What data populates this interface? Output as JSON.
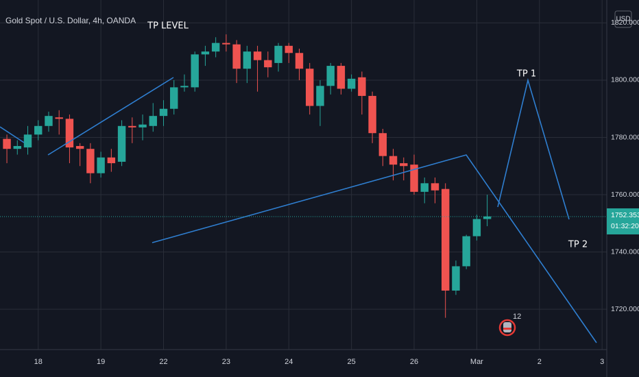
{
  "chart_data": {
    "type": "candlestick",
    "title": "Gold Spot / U.S. Dollar, 4h, OANDA",
    "currency": "USD",
    "annotations": [
      "TP LEVEL",
      "TP 1",
      "TP 2"
    ],
    "event_badge": "12",
    "last_price": 1752.353,
    "countdown": "01:32:20",
    "up_color": "#26a69a",
    "down_color": "#ef5350",
    "x": [
      0,
      1,
      2,
      3,
      4,
      5,
      6,
      7,
      8,
      9,
      10,
      11,
      12,
      13,
      14,
      15,
      16,
      17,
      18,
      19,
      20,
      21,
      22,
      23,
      24,
      25,
      26,
      27,
      28,
      29,
      30,
      31,
      32,
      33,
      34,
      35,
      36,
      37,
      38,
      39,
      40,
      41,
      42,
      43,
      44,
      45,
      46
    ],
    "open": [
      1779.5,
      1776,
      1776.5,
      1781,
      1784,
      1787,
      1786.5,
      1777,
      1776,
      1767.5,
      1773,
      1771.5,
      1784,
      1783.5,
      1784,
      1787.5,
      1790,
      1797.5,
      1797.5,
      1809,
      1810,
      1813,
      1812.5,
      1804,
      1810,
      1807,
      1806,
      1812,
      1809.5,
      1804,
      1791,
      1798,
      1805,
      1797,
      1801,
      1794.5,
      1781.5,
      1773.5,
      1771,
      1770.5,
      1761,
      1764,
      1762,
      1726.5,
      1735,
      1745.5,
      1751.5
    ],
    "high": [
      1781,
      1779,
      1784,
      1786,
      1789,
      1789.5,
      1788,
      1778,
      1778,
      1775,
      1776,
      1786,
      1787,
      1788,
      1792,
      1793,
      1800,
      1802,
      1810,
      1812,
      1815,
      1816,
      1814,
      1812,
      1812,
      1810,
      1813,
      1813,
      1811,
      1806,
      1800,
      1806,
      1806,
      1802,
      1803,
      1796,
      1783,
      1776,
      1773,
      1774,
      1766,
      1766,
      1764,
      1737,
      1746,
      1753,
      1760
    ],
    "low": [
      1771,
      1774,
      1774,
      1779,
      1782,
      1781,
      1771,
      1770,
      1764,
      1766,
      1768,
      1770,
      1778,
      1779,
      1782,
      1784,
      1788,
      1796,
      1796,
      1805,
      1808,
      1810,
      1799,
      1799,
      1796,
      1801,
      1803,
      1806,
      1800,
      1788,
      1784,
      1795,
      1795,
      1796,
      1788,
      1778,
      1770,
      1765,
      1765,
      1760,
      1757,
      1757,
      1717,
      1725,
      1734,
      1744,
      1749
    ],
    "close": [
      1776,
      1777,
      1781,
      1784,
      1787.5,
      1786.5,
      1776.5,
      1776,
      1767.5,
      1773,
      1771,
      1784,
      1783.5,
      1784.5,
      1787.5,
      1790,
      1797.5,
      1798,
      1809,
      1810,
      1813,
      1812.5,
      1804,
      1810,
      1807,
      1804.5,
      1812,
      1809.5,
      1804,
      1791,
      1798,
      1805,
      1797,
      1800.5,
      1794.5,
      1781.5,
      1773.5,
      1770.5,
      1770,
      1761,
      1764,
      1761.5,
      1726.5,
      1735,
      1745.5,
      1751.5,
      1752.4
    ],
    "xlim": [
      -0.66,
      57.45
    ],
    "xticks": [
      {
        "value": 3,
        "label": "18"
      },
      {
        "value": 9,
        "label": "19"
      },
      {
        "value": 15,
        "label": "22"
      },
      {
        "value": 21,
        "label": "23"
      },
      {
        "value": 27,
        "label": "24"
      },
      {
        "value": 33,
        "label": "25"
      },
      {
        "value": 39,
        "label": "26"
      },
      {
        "value": 45,
        "label": "Mar"
      },
      {
        "value": 51,
        "label": "2"
      },
      {
        "value": 57,
        "label": "3"
      }
    ],
    "ylim": [
      1705.9,
      1828.0
    ],
    "yticks": [
      {
        "value": 1720,
        "label": "1720.000"
      },
      {
        "value": 1740,
        "label": "1740.000"
      },
      {
        "value": 1760,
        "label": "1760.000"
      },
      {
        "value": 1780,
        "label": "1780.000"
      },
      {
        "value": 1800,
        "label": "1800.000"
      },
      {
        "value": 1820,
        "label": "1820.000"
      }
    ],
    "grid": true
  }
}
